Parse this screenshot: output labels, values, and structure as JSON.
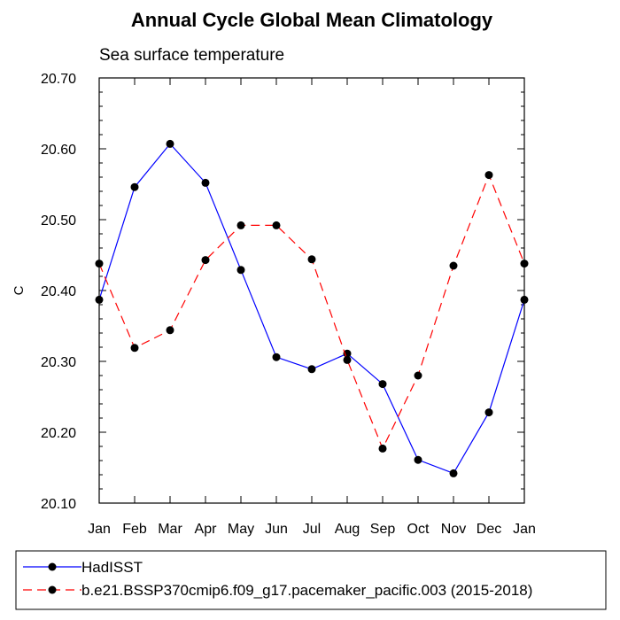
{
  "chart_data": {
    "type": "line",
    "title": "Annual Cycle Global Mean Climatology",
    "subtitle": "Sea surface temperature",
    "ylabel": "C",
    "xlabel": "",
    "categories": [
      "Jan",
      "Feb",
      "Mar",
      "Apr",
      "May",
      "Jun",
      "Jul",
      "Aug",
      "Sep",
      "Oct",
      "Nov",
      "Dec",
      "Jan"
    ],
    "ylim": [
      20.1,
      20.7
    ],
    "yticks": [
      "20.10",
      "20.20",
      "20.30",
      "20.40",
      "20.50",
      "20.60",
      "20.70"
    ],
    "series": [
      {
        "name": "HadISST",
        "color": "#0000ff",
        "dash": "solid",
        "values": [
          20.387,
          20.546,
          20.607,
          20.552,
          20.429,
          20.306,
          20.289,
          20.311,
          20.268,
          20.161,
          20.142,
          20.228,
          20.387
        ]
      },
      {
        "name": "b.e21.BSSP370cmip6.f09_g17.pacemaker_pacific.003 (2015-2018)",
        "color": "#ff0000",
        "dash": "dashed",
        "values": [
          20.438,
          20.319,
          20.344,
          20.443,
          20.492,
          20.492,
          20.444,
          20.302,
          20.177,
          20.28,
          20.435,
          20.563,
          20.438
        ]
      }
    ]
  }
}
